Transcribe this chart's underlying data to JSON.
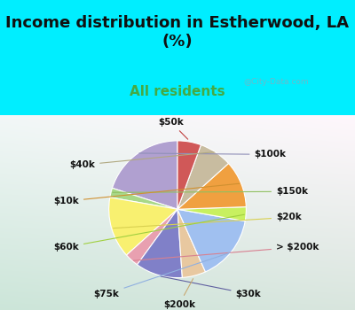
{
  "title": "Income distribution in Estherwood, LA\n(%)",
  "subtitle": "All residents",
  "bg_cyan": "#00eeff",
  "labels": [
    "$100k",
    "$150k",
    "$20k",
    "> $200k",
    "$30k",
    "$200k",
    "$75k",
    "$60k",
    "$10k",
    "$40k",
    "$50k"
  ],
  "values": [
    18,
    2,
    13,
    3,
    10,
    5,
    14,
    3,
    10,
    7,
    5
  ],
  "colors": [
    "#b0a0d0",
    "#a8d888",
    "#f8f070",
    "#e8a0b0",
    "#8080c8",
    "#e8c8a0",
    "#a0c0f0",
    "#c8f060",
    "#f0a040",
    "#c8bca0",
    "#d05858"
  ],
  "line_colors": [
    "#9090b8",
    "#90c060",
    "#d8d050",
    "#d88090",
    "#6060a0",
    "#c8a870",
    "#90b0e0",
    "#a0d040",
    "#d09030",
    "#b0a880",
    "#c04040"
  ],
  "watermark": "@City-Data.com",
  "label_fontsize": 7.5,
  "title_fontsize": 13,
  "subtitle_fontsize": 11,
  "subtitle_color": "#44aa44",
  "title_color": "#111111"
}
